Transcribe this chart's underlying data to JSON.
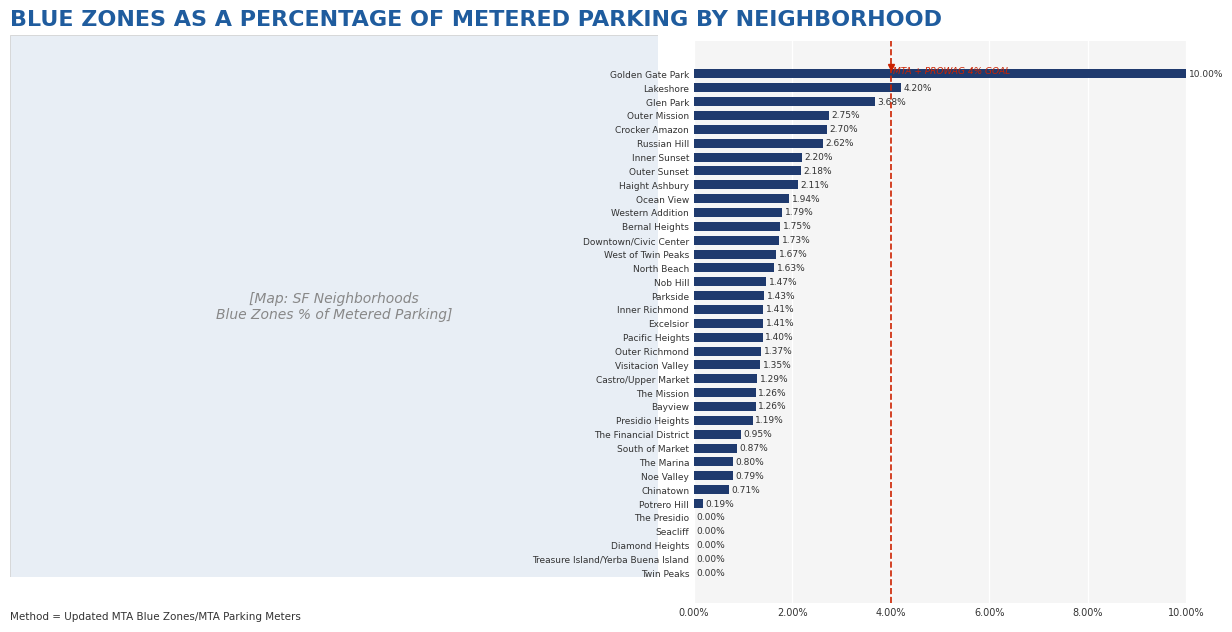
{
  "title": "BLUE ZONES AS A PERCENTAGE OF METERED PARKING BY NEIGHBORHOOD",
  "title_color": "#1F5C9E",
  "footnote": "Method = Updated MTA Blue Zones/MTA Parking Meters",
  "goal_line": 4.0,
  "goal_label": "MTA + PROWAG 4% GOAL",
  "bar_color": "#1F3A6E",
  "neighborhoods": [
    "Golden Gate Park",
    "Lakeshore",
    "Glen Park",
    "Outer Mission",
    "Crocker Amazon",
    "Russian Hill",
    "Inner Sunset",
    "Outer Sunset",
    "Haight Ashbury",
    "Ocean View",
    "Western Addition",
    "Bernal Heights",
    "Downtown/Civic Center",
    "West of Twin Peaks",
    "North Beach",
    "Nob Hill",
    "Parkside",
    "Inner Richmond",
    "Excelsior",
    "Pacific Heights",
    "Outer Richmond",
    "Visitacion Valley",
    "Castro/Upper Market",
    "The Mission",
    "Bayview",
    "Presidio Heights",
    "The Financial District",
    "South of Market",
    "The Marina",
    "Noe Valley",
    "Chinatown",
    "Potrero Hill",
    "The Presidio",
    "Seacliff",
    "Diamond Heights",
    "Treasure Island/Yerba Buena Island",
    "Twin Peaks"
  ],
  "values": [
    10.0,
    4.2,
    3.68,
    2.75,
    2.7,
    2.62,
    2.2,
    2.18,
    2.11,
    1.94,
    1.79,
    1.75,
    1.73,
    1.67,
    1.63,
    1.47,
    1.43,
    1.41,
    1.41,
    1.4,
    1.37,
    1.35,
    1.29,
    1.26,
    1.26,
    1.19,
    0.95,
    0.87,
    0.8,
    0.79,
    0.71,
    0.19,
    0.0,
    0.0,
    0.0,
    0.0,
    0.0
  ],
  "xlim": [
    0,
    10.0
  ],
  "xticks": [
    0.0,
    2.0,
    4.0,
    6.0,
    8.0,
    10.0
  ],
  "xticklabels": [
    "0.00%",
    "2.00%",
    "4.00%",
    "6.00%",
    "8.00%",
    "10.00%"
  ],
  "background_color": "#FFFFFF",
  "chart_bg_color": "#F5F5F5",
  "grid_color": "#FFFFFF",
  "map_placeholder_color": "#D0D8E8"
}
